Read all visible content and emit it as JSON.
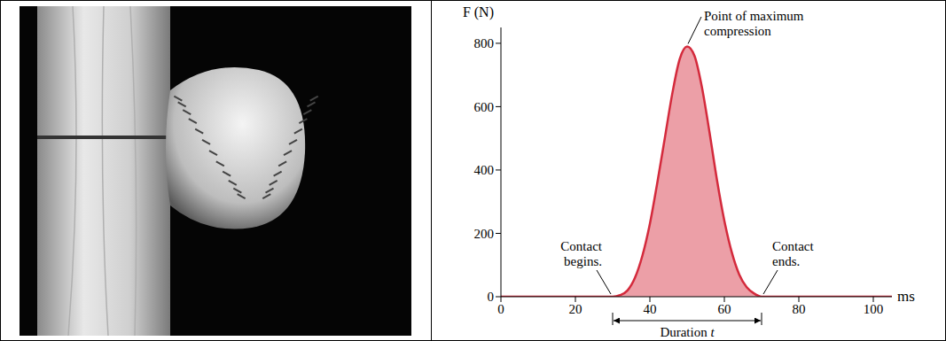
{
  "chart_data": {
    "type": "area",
    "x_label": "ms",
    "y_label": "F (N)",
    "annotations": {
      "peak": "Point of maximum compression",
      "start": "Contact begins.",
      "end": "Contact ends.",
      "duration": "Duration t"
    },
    "x": [
      0,
      10,
      20,
      30,
      32,
      34,
      36,
      38,
      40,
      42,
      44,
      46,
      48,
      50,
      52,
      54,
      56,
      58,
      60,
      62,
      64,
      66,
      68,
      70,
      80,
      90,
      100,
      105
    ],
    "values": [
      0,
      0,
      0,
      0,
      5,
      20,
      60,
      130,
      230,
      360,
      500,
      640,
      750,
      790,
      760,
      660,
      520,
      370,
      240,
      140,
      70,
      30,
      10,
      0,
      0,
      0,
      0,
      0
    ],
    "color": "#d42a3c",
    "xlim": [
      0,
      105
    ],
    "ylim": [
      0,
      850
    ],
    "xticks": [
      0,
      20,
      40,
      60,
      80,
      100
    ],
    "yticks": [
      0,
      200,
      400,
      600,
      800
    ]
  }
}
